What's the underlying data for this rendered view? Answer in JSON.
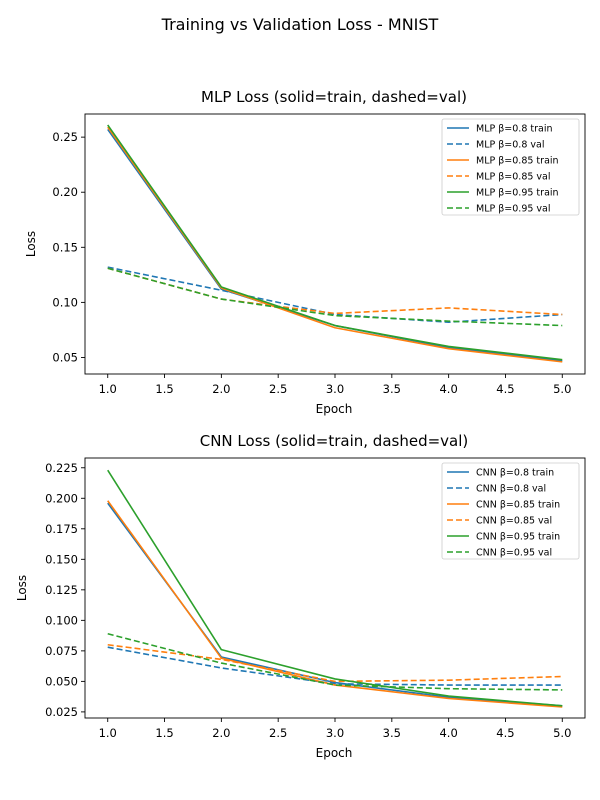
{
  "suptitle": "Training vs Validation Loss - MNIST",
  "chart_data": [
    {
      "type": "line",
      "title": "MLP Loss (solid=train, dashed=val)",
      "xlabel": "Epoch",
      "ylabel": "Loss",
      "xlim": [
        0.8,
        5.2
      ],
      "ylim": [
        0.035,
        0.271
      ],
      "xticks": [
        "1.0",
        "1.5",
        "2.0",
        "2.5",
        "3.0",
        "3.5",
        "4.0",
        "4.5",
        "5.0"
      ],
      "yticks": [
        "0.05",
        "0.10",
        "0.15",
        "0.20",
        "0.25"
      ],
      "legend_position": "upper right",
      "grid": false,
      "x": [
        1,
        2,
        3,
        4,
        5
      ],
      "series": [
        {
          "name": "MLP β=0.8 train",
          "color": "#1f77b4",
          "dashed": false,
          "values": [
            0.257,
            0.112,
            0.079,
            0.059,
            0.047
          ]
        },
        {
          "name": "MLP β=0.8 val",
          "color": "#1f77b4",
          "dashed": true,
          "values": [
            0.132,
            0.111,
            0.089,
            0.082,
            0.089
          ]
        },
        {
          "name": "MLP β=0.85 train",
          "color": "#ff7f0e",
          "dashed": false,
          "values": [
            0.259,
            0.113,
            0.077,
            0.058,
            0.046
          ]
        },
        {
          "name": "MLP β=0.85 val",
          "color": "#ff7f0e",
          "dashed": true,
          "values": [
            0.131,
            0.103,
            0.09,
            0.095,
            0.089
          ]
        },
        {
          "name": "MLP β=0.95 train",
          "color": "#2ca02c",
          "dashed": false,
          "values": [
            0.261,
            0.114,
            0.079,
            0.06,
            0.048
          ]
        },
        {
          "name": "MLP β=0.95 val",
          "color": "#2ca02c",
          "dashed": true,
          "values": [
            0.131,
            0.103,
            0.088,
            0.083,
            0.079
          ]
        }
      ]
    },
    {
      "type": "line",
      "title": "CNN Loss (solid=train, dashed=val)",
      "xlabel": "Epoch",
      "ylabel": "Loss",
      "xlim": [
        0.8,
        5.2
      ],
      "ylim": [
        0.02,
        0.233
      ],
      "xticks": [
        "1.0",
        "1.5",
        "2.0",
        "2.5",
        "3.0",
        "3.5",
        "4.0",
        "4.5",
        "5.0"
      ],
      "yticks": [
        "0.025",
        "0.050",
        "0.075",
        "0.100",
        "0.125",
        "0.150",
        "0.175",
        "0.200",
        "0.225"
      ],
      "legend_position": "upper right",
      "grid": false,
      "x": [
        1,
        2,
        3,
        4,
        5
      ],
      "series": [
        {
          "name": "CNN β=0.8 train",
          "color": "#1f77b4",
          "dashed": false,
          "values": [
            0.196,
            0.07,
            0.049,
            0.037,
            0.03
          ]
        },
        {
          "name": "CNN β=0.8 val",
          "color": "#1f77b4",
          "dashed": true,
          "values": [
            0.078,
            0.061,
            0.048,
            0.047,
            0.047
          ]
        },
        {
          "name": "CNN β=0.85 train",
          "color": "#ff7f0e",
          "dashed": false,
          "values": [
            0.198,
            0.069,
            0.047,
            0.036,
            0.029
          ]
        },
        {
          "name": "CNN β=0.85 val",
          "color": "#ff7f0e",
          "dashed": true,
          "values": [
            0.08,
            0.068,
            0.05,
            0.051,
            0.054
          ]
        },
        {
          "name": "CNN β=0.95 train",
          "color": "#2ca02c",
          "dashed": false,
          "values": [
            0.223,
            0.076,
            0.052,
            0.038,
            0.03
          ]
        },
        {
          "name": "CNN β=0.95 val",
          "color": "#2ca02c",
          "dashed": true,
          "values": [
            0.089,
            0.065,
            0.047,
            0.044,
            0.043
          ]
        }
      ]
    }
  ]
}
